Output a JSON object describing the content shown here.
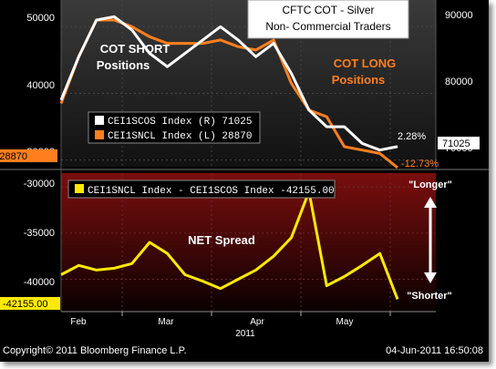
{
  "title_box": {
    "line1": "CFTC COT - Silver",
    "line2": "Non- Commercial Traders"
  },
  "footer": {
    "copyright": "Copyright© 2011 Bloomberg Finance L.P.",
    "timestamp": "04-Jun-2011 16:50:08"
  },
  "colors": {
    "short": "#ffffff",
    "long": "#ff7f1e",
    "spread": "#ffea00",
    "background": "#000000"
  },
  "chart_data": [
    {
      "type": "line",
      "x_labels": [
        "Feb",
        "Mar",
        "Apr",
        "May"
      ],
      "year_label": "2011",
      "y_left": {
        "ticks": [
          "50000",
          "40000",
          "30000"
        ],
        "range": [
          29000,
          54000
        ]
      },
      "y_right": {
        "ticks": [
          "90000",
          "80000",
          "70000"
        ],
        "range": [
          68000,
          93000
        ]
      },
      "annotations": {
        "short": [
          "COT SHORT",
          "Positions"
        ],
        "long": [
          "COT LONG",
          "Positions"
        ],
        "pct_short": "2.28%",
        "pct_long": "-12.73%"
      },
      "legend": [
        {
          "text": "CEI1SCOS Index (R) 71025",
          "color": "#ffffff"
        },
        {
          "text": "CEI1SNCL Index (L) 28870",
          "color": "#ff7f1e"
        }
      ],
      "last_values": {
        "left": "28870",
        "right": "71025"
      },
      "series": [
        {
          "name": "CEI1SCOS Index (R)",
          "axis": "right",
          "color": "#ffffff",
          "values": [
            78000,
            84500,
            90000,
            90500,
            88500,
            85000,
            83000,
            85000,
            87000,
            89000,
            87000,
            84500,
            86500,
            82000,
            76500,
            74000,
            74000,
            71500,
            70500,
            71025
          ]
        },
        {
          "name": "CEI1SNCL Index (L)",
          "axis": "left",
          "color": "#ff7f1e",
          "values": [
            38500,
            45500,
            51000,
            51000,
            50000,
            48500,
            47500,
            47500,
            47500,
            48000,
            47000,
            46500,
            48000,
            41500,
            37500,
            36500,
            32000,
            31500,
            31000,
            28870
          ]
        }
      ]
    },
    {
      "type": "line",
      "y_axis": {
        "ticks": [
          "-30000",
          "-35000",
          "-40000"
        ],
        "range": [
          -43500,
          -28500
        ]
      },
      "title": "NET Spread",
      "legend": [
        {
          "text": "CEI1SNCL Index - CEI1SCOS Index -42155.00",
          "color": "#ffea00"
        }
      ],
      "labels": {
        "longer": "\"Longer\"",
        "shorter": "\"Shorter\""
      },
      "last_value": "-42155.00",
      "series": [
        {
          "name": "CEI1SNCL Index - CEI1SCOS Index",
          "color": "#ffea00",
          "values": [
            -39500,
            -38500,
            -39000,
            -38800,
            -38300,
            -36000,
            -37200,
            -39500,
            -40200,
            -41000,
            -40000,
            -39000,
            -37500,
            -35500,
            -30500,
            -40700,
            -39700,
            -38500,
            -37200,
            -42155
          ]
        }
      ]
    }
  ]
}
